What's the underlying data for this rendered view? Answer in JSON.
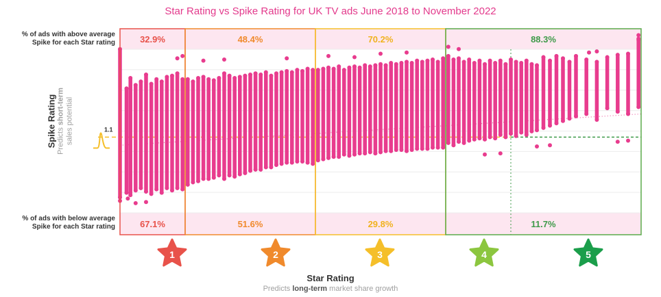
{
  "chart_data": {
    "type": "scatter",
    "title": "Star Rating vs Spike Rating for UK TV ads June 2018 to November 2022",
    "xlabel": "Star Rating",
    "xsub": {
      "prefix": "Predicts ",
      "bold": "long-term",
      "suffix": " market share growth"
    },
    "ylabel": "Spike Rating",
    "ysub_prefix": "Predicts ",
    "ysub_bold": "short-term",
    "ysub_line2": "sales potential",
    "average_label": "1.1",
    "average_value": 1.1,
    "above_label": [
      "% of ads with above average",
      "Spike for each Star rating"
    ],
    "below_label": [
      "% of ads with below average",
      "Spike for each Star rating"
    ],
    "stars": [
      "1",
      "2",
      "3",
      "4",
      "5"
    ],
    "above_pct": [
      "32.9%",
      "48.4%",
      "70.2%",
      "88.3%"
    ],
    "below_pct": [
      "67.1%",
      "51.6%",
      "29.8%",
      "11.7%"
    ],
    "groups": [
      {
        "name": "Star 1",
        "x_range": [
          1.0,
          1.5
        ],
        "color": "#e8524a"
      },
      {
        "name": "Star 2",
        "x_range": [
          1.5,
          2.5
        ],
        "color": "#f08a2c"
      },
      {
        "name": "Star 3",
        "x_range": [
          2.5,
          3.5
        ],
        "color": "#f5bf2a"
      },
      {
        "name": "Star 4-5",
        "x_range": [
          3.5,
          5.0
        ],
        "color": "#5aaa4a"
      }
    ],
    "xlim": [
      1.0,
      5.0
    ],
    "ylim": [
      0.5,
      2.0
    ],
    "trend": {
      "y_at_min": 1.03,
      "y_at_max": 1.3
    },
    "points_color": "#e83c8e",
    "columns": [
      {
        "x": 1.0,
        "min": 0.58,
        "max": 1.86
      },
      {
        "x": 1.05,
        "min": 0.62,
        "max": 1.52
      },
      {
        "x": 1.08,
        "min": 0.6,
        "max": 1.61
      },
      {
        "x": 1.12,
        "min": 0.64,
        "max": 1.55
      },
      {
        "x": 1.16,
        "min": 0.66,
        "max": 1.58
      },
      {
        "x": 1.2,
        "min": 0.63,
        "max": 1.64
      },
      {
        "x": 1.24,
        "min": 0.61,
        "max": 1.56
      },
      {
        "x": 1.28,
        "min": 0.65,
        "max": 1.6
      },
      {
        "x": 1.32,
        "min": 0.62,
        "max": 1.58
      },
      {
        "x": 1.36,
        "min": 0.66,
        "max": 1.62
      },
      {
        "x": 1.4,
        "min": 0.64,
        "max": 1.63
      },
      {
        "x": 1.44,
        "min": 0.66,
        "max": 1.65
      },
      {
        "x": 1.48,
        "min": 0.65,
        "max": 1.6
      },
      {
        "x": 1.52,
        "min": 0.69,
        "max": 1.6
      },
      {
        "x": 1.56,
        "min": 0.71,
        "max": 1.58
      },
      {
        "x": 1.6,
        "min": 0.72,
        "max": 1.61
      },
      {
        "x": 1.64,
        "min": 0.74,
        "max": 1.62
      },
      {
        "x": 1.68,
        "min": 0.74,
        "max": 1.6
      },
      {
        "x": 1.72,
        "min": 0.75,
        "max": 1.59
      },
      {
        "x": 1.76,
        "min": 0.77,
        "max": 1.61
      },
      {
        "x": 1.8,
        "min": 0.74,
        "max": 1.65
      },
      {
        "x": 1.84,
        "min": 0.77,
        "max": 1.63
      },
      {
        "x": 1.88,
        "min": 0.76,
        "max": 1.61
      },
      {
        "x": 1.92,
        "min": 0.78,
        "max": 1.62
      },
      {
        "x": 1.96,
        "min": 0.79,
        "max": 1.63
      },
      {
        "x": 2.0,
        "min": 0.81,
        "max": 1.64
      },
      {
        "x": 2.04,
        "min": 0.82,
        "max": 1.65
      },
      {
        "x": 2.08,
        "min": 0.82,
        "max": 1.64
      },
      {
        "x": 2.12,
        "min": 0.84,
        "max": 1.66
      },
      {
        "x": 2.16,
        "min": 0.84,
        "max": 1.63
      },
      {
        "x": 2.2,
        "min": 0.86,
        "max": 1.65
      },
      {
        "x": 2.24,
        "min": 0.87,
        "max": 1.66
      },
      {
        "x": 2.28,
        "min": 0.88,
        "max": 1.67
      },
      {
        "x": 2.32,
        "min": 0.88,
        "max": 1.66
      },
      {
        "x": 2.36,
        "min": 0.89,
        "max": 1.68
      },
      {
        "x": 2.4,
        "min": 0.89,
        "max": 1.67
      },
      {
        "x": 2.44,
        "min": 0.88,
        "max": 1.69
      },
      {
        "x": 2.48,
        "min": 0.87,
        "max": 1.68
      },
      {
        "x": 2.52,
        "min": 0.9,
        "max": 1.68
      },
      {
        "x": 2.56,
        "min": 0.91,
        "max": 1.69
      },
      {
        "x": 2.6,
        "min": 0.92,
        "max": 1.7
      },
      {
        "x": 2.64,
        "min": 0.93,
        "max": 1.69
      },
      {
        "x": 2.68,
        "min": 0.93,
        "max": 1.71
      },
      {
        "x": 2.72,
        "min": 0.95,
        "max": 1.68
      },
      {
        "x": 2.76,
        "min": 0.94,
        "max": 1.7
      },
      {
        "x": 2.8,
        "min": 0.95,
        "max": 1.71
      },
      {
        "x": 2.84,
        "min": 0.96,
        "max": 1.7
      },
      {
        "x": 2.88,
        "min": 0.96,
        "max": 1.72
      },
      {
        "x": 2.92,
        "min": 0.97,
        "max": 1.71
      },
      {
        "x": 2.96,
        "min": 0.96,
        "max": 1.72
      },
      {
        "x": 3.0,
        "min": 0.97,
        "max": 1.73
      },
      {
        "x": 3.04,
        "min": 0.98,
        "max": 1.72
      },
      {
        "x": 3.08,
        "min": 0.98,
        "max": 1.74
      },
      {
        "x": 3.12,
        "min": 0.99,
        "max": 1.73
      },
      {
        "x": 3.16,
        "min": 0.99,
        "max": 1.74
      },
      {
        "x": 3.2,
        "min": 0.98,
        "max": 1.75
      },
      {
        "x": 3.24,
        "min": 0.99,
        "max": 1.74
      },
      {
        "x": 3.28,
        "min": 1.0,
        "max": 1.76
      },
      {
        "x": 3.32,
        "min": 1.0,
        "max": 1.75
      },
      {
        "x": 3.36,
        "min": 1.0,
        "max": 1.76
      },
      {
        "x": 3.4,
        "min": 1.01,
        "max": 1.77
      },
      {
        "x": 3.44,
        "min": 1.01,
        "max": 1.75
      },
      {
        "x": 3.48,
        "min": 1.01,
        "max": 1.78
      },
      {
        "x": 3.52,
        "min": 1.05,
        "max": 1.8
      },
      {
        "x": 3.56,
        "min": 1.03,
        "max": 1.77
      },
      {
        "x": 3.6,
        "min": 1.06,
        "max": 1.78
      },
      {
        "x": 3.64,
        "min": 1.05,
        "max": 1.75
      },
      {
        "x": 3.68,
        "min": 1.07,
        "max": 1.77
      },
      {
        "x": 3.72,
        "min": 1.08,
        "max": 1.74
      },
      {
        "x": 3.76,
        "min": 1.09,
        "max": 1.76
      },
      {
        "x": 3.8,
        "min": 1.08,
        "max": 1.73
      },
      {
        "x": 3.84,
        "min": 1.1,
        "max": 1.76
      },
      {
        "x": 3.88,
        "min": 1.09,
        "max": 1.74
      },
      {
        "x": 3.92,
        "min": 1.12,
        "max": 1.76
      },
      {
        "x": 3.96,
        "min": 1.1,
        "max": 1.73
      },
      {
        "x": 4.0,
        "min": 1.13,
        "max": 1.77
      },
      {
        "x": 4.04,
        "min": 1.11,
        "max": 1.75
      },
      {
        "x": 4.08,
        "min": 1.14,
        "max": 1.74
      },
      {
        "x": 4.12,
        "min": 1.12,
        "max": 1.76
      },
      {
        "x": 4.16,
        "min": 1.15,
        "max": 1.73
      },
      {
        "x": 4.2,
        "min": 1.16,
        "max": 1.72
      },
      {
        "x": 4.25,
        "min": 1.18,
        "max": 1.79
      },
      {
        "x": 4.3,
        "min": 1.2,
        "max": 1.76
      },
      {
        "x": 4.35,
        "min": 1.22,
        "max": 1.8
      },
      {
        "x": 4.4,
        "min": 1.24,
        "max": 1.78
      },
      {
        "x": 4.45,
        "min": 1.26,
        "max": 1.75
      },
      {
        "x": 4.5,
        "min": 1.28,
        "max": 1.8
      },
      {
        "x": 4.58,
        "min": 1.3,
        "max": 1.77
      },
      {
        "x": 4.66,
        "min": 1.25,
        "max": 1.75
      },
      {
        "x": 4.74,
        "min": 1.35,
        "max": 1.79
      },
      {
        "x": 4.82,
        "min": 1.32,
        "max": 1.81
      },
      {
        "x": 4.9,
        "min": 1.3,
        "max": 1.82
      },
      {
        "x": 4.98,
        "min": 1.36,
        "max": 1.94
      }
    ],
    "outliers": [
      [
        1.0,
        0.55
      ],
      [
        1.06,
        0.57
      ],
      [
        1.12,
        0.53
      ],
      [
        1.2,
        0.54
      ],
      [
        1.44,
        1.78
      ],
      [
        1.48,
        1.8
      ],
      [
        1.64,
        1.76
      ],
      [
        1.8,
        1.77
      ],
      [
        2.28,
        1.78
      ],
      [
        2.6,
        1.8
      ],
      [
        2.8,
        1.79
      ],
      [
        3.0,
        1.82
      ],
      [
        3.2,
        1.83
      ],
      [
        3.52,
        1.88
      ],
      [
        3.6,
        1.86
      ],
      [
        3.8,
        0.95
      ],
      [
        3.92,
        0.96
      ],
      [
        4.2,
        1.02
      ],
      [
        4.3,
        1.03
      ],
      [
        4.6,
        1.83
      ],
      [
        4.66,
        1.84
      ],
      [
        4.82,
        1.06
      ],
      [
        4.9,
        1.07
      ],
      [
        4.98,
        1.98
      ],
      [
        4.98,
        1.95
      ]
    ]
  }
}
